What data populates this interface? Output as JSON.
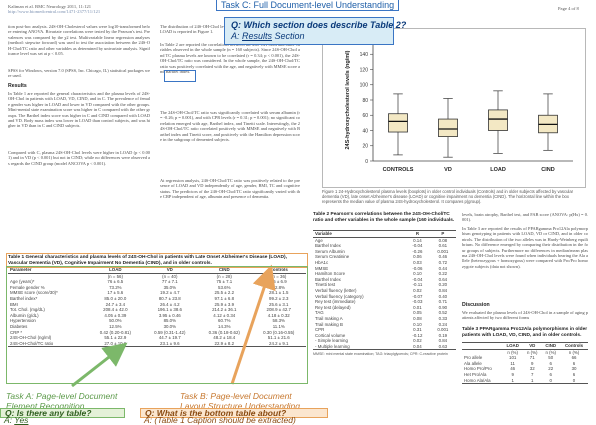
{
  "page": {
    "header_left": "Kaliman et al. BMC Neurology 2011, 11:121",
    "header_left_url": "http://www.biomedcentral.com/1471-2377/11/121",
    "header_right": "Page 4 of 8"
  },
  "col1": {
    "para1": "tion post-hoc analysis. 24S-OH-Cholesterol values were log10-transformed before entering ANOVA. Bivariate correlations were tested by the Pearson's test. Prevalences was compared by the χ2 test. Multivariable linear regression analyses (method: stepwise forward) was used to test the association between the 24S-OH-Chol/TC ratio and other variables as determined by univariate analysis. Significance level was set at p < 0.05.",
    "para2": "SPSS for Windows, version 7.0 (SPSS, Inc. Chicago, IL) statistical packages were used.",
    "results_heading": "Results",
    "para3": "In Table 1 are reported the general characteristics and the plasma levels of 24S-OH-Chol in patients with LOAD, VD, CIND, and in C. The prevalence of female gender was higher in LOAD and lower in VD compared with the other groups. Mini-mental state examination score was higher in C compared with the other groups. The Barthel index score was higher in C and CIND compared with LOAD and VD. Body mass index was lower in LOAD than control subjects, and was higher in VD than in C and CIND subjects.",
    "para4": "Compared with C, plasma 24S-OH-Chol levels were higher in LOAD (p < 0.001) and in VD (p < 0.001) but not in CIND; while no differences were observed as regards the CIND group (model ANCOVA p < 0.001)."
  },
  "col2": {
    "para1": "The distribution of 24S-OH-Chol levels (boxplots) in Controls, CIND, VD and LOAD is reported in Figure 1.",
    "para2": "In Table 2 are reported the correlations between the 24S-OH-Chol and other variables observed in the whole sample (n = 160 subjects). Since 24S-OH-Chol and TC plasma levels are known to be correlated (r = 0.34; p < 0.001), the 24S-OH-Chol/TC ratio was considered. In the whole sample, the 24S-OH-Chol/TC ratio was positively correlated with the age, and negatively with MMSE score and Barthel index.",
    "para3": "The 24S-OH-Chol/TC ratio was significantly correlated with serum albumin (r = -0.26; p = 0.001), and with CPR levels (r = 0.31; p = 0.001); no significant correlation emerged with age, Barthel index, and Tinetti scale. Interestingly, the 24S-OH-Chol/TC ratio correlated positively with MMSE and negatively with Barthel index and Tinetti score, and positively with the Hamilton depression score in the subgroup of demented subjects.",
    "para4": "At regression analysis, 24S-OH-Chol/TC ratio was positively related to the presence of LOAD and VD independently of age, gender, BMI, TC and cognitive status. The predictors of the 24S-OH-Chol/TC ratio significantly varied with the CRP independent of age, albumin and presence of dementia."
  },
  "figure": {
    "ylabel": "24S-hydroxycholesterol levels (ng/ml)",
    "categories": [
      "CONTROLS",
      "VD",
      "LOAD",
      "CIND"
    ],
    "caption": "Figure 1 24-Hydroxycholesterol plasma levels (boxplots) in older control individuals (Controls) and in older subjects affected by vascular dementia (VD), late onset Alzheimer's disease (LOAD) or cognitive impairment no dementia (CIND). The horizontal line within the box represents the median value of plasma 24S-hydroxycholesterol. It compares p(group)."
  },
  "chart_data": {
    "type": "box",
    "categories": [
      "CONTROLS",
      "VD",
      "LOAD",
      "CIND"
    ],
    "ylabel": "24S-hydroxycholesterol levels (ng/ml)",
    "ylim": [
      0,
      160
    ],
    "yticks": [
      0,
      20,
      40,
      60,
      80,
      100,
      120,
      140,
      160
    ],
    "boxes": [
      {
        "whisker_low": 8,
        "q1": 38,
        "median": 52,
        "q3": 62,
        "whisker_high": 88
      },
      {
        "whisker_low": 5,
        "q1": 32,
        "median": 42,
        "q3": 55,
        "whisker_high": 82
      },
      {
        "whisker_low": 10,
        "q1": 40,
        "median": 55,
        "q3": 67,
        "whisker_high": 92
      },
      {
        "whisker_low": 14,
        "q1": 37,
        "median": 48,
        "q3": 60,
        "whisker_high": 88
      }
    ]
  },
  "table1": {
    "caption": "Table 1 General characteristics and plasma levels of 24S-OH-Chol in patients with Late Onset Alzheimer's Disease (LOAD), Vascular Dementia (VD), Cognitive Impairment No Dementia (CIND), and in older controls.",
    "headers": [
      "Parameter",
      "LOAD",
      "VD",
      "CIND",
      "Controls"
    ],
    "subheaders": [
      "",
      "(n = 56)",
      "(n = 40)",
      "(n = 28)",
      "(n = 36)"
    ],
    "rows": [
      [
        "Age (years)*",
        "76 ± 6.5",
        "77 ± 7.1",
        "75 ± 7.1",
        "75 ± 6.9"
      ],
      [
        "Female gender %",
        "73.2%",
        "35.0%",
        "53.6%",
        "52.8%"
      ],
      [
        "MMSE score (score/30)*",
        "17 ± 5.6",
        "19.2 ± 4.7",
        "25.5 ± 2.2",
        "28.1 ± 1.5"
      ],
      [
        "Barthel index*",
        "85.0 ± 20.0",
        "80.7 ± 23.8",
        "97.1 ± 6.8",
        "99.2 ± 2.3"
      ],
      [
        "BMI",
        "24.7 ± 3.4",
        "26.4 ± 4.2",
        "25.9 ± 3.9",
        "25.6 ± 3.1"
      ],
      [
        "Tot. Chol. (mg/dL)",
        "208.4 ± 42.0",
        "196.1 ± 38.6",
        "214.2 ± 36.1",
        "208.9 ± 42.7"
      ],
      [
        "Albumin (g/dL)",
        "4.05 ± 0.39",
        "3.95 ± 0.46",
        "4.12 ± 0.34",
        "4.18 ± 0.32"
      ],
      [
        "Hypertension",
        "50.0%",
        "85.0%",
        "60.7%",
        "58.3%"
      ],
      [
        "Diabetes",
        "12.5%",
        "30.0%",
        "14.3%",
        "11.1%"
      ],
      [
        "CRP *",
        "0.42 (0.20-0.81)",
        "0.59 (0.31-1.42)",
        "0.36 (0.18-0.62)",
        "0.30 (0.16-0.55)"
      ],
      [
        "24S-OH-Chol (ng/ml)",
        "55.1 ± 22.9",
        "44.7 ± 19.7",
        "48.2 ± 18.4",
        "51.1 ± 21.6"
      ],
      [
        "24S-OH-Chol/TC ratio",
        "27.0 ± 10.6",
        "23.1 ± 9.6",
        "22.9 ± 8.2",
        "24.2 ± 9.1"
      ]
    ]
  },
  "table2": {
    "caption": "Table 2 Pearson's correlations between the 24S-OH-Chol/TC ratio and other variables in the whole sample (160 individuals.",
    "headers": [
      "Variable",
      "R",
      "P"
    ],
    "rows": [
      [
        "Age",
        "0.14",
        "0.08"
      ],
      [
        "Barthel Index",
        "-0.04",
        "0.61"
      ],
      [
        "Serum Albumin",
        "-0.26",
        "0.001"
      ],
      [
        "Serum Creatinine",
        "0.06",
        "0.46"
      ],
      [
        "HbA1c",
        "0.03",
        "0.72"
      ],
      [
        "MMSE",
        "-0.06",
        "0.44"
      ],
      [
        "Hamilton Score",
        "0.10",
        "0.22"
      ],
      [
        "Barthel Index",
        "-0.04",
        "0.64"
      ],
      [
        "Tinetti test",
        "-0.11",
        "0.20"
      ],
      [
        "Verbal fluency (letter)",
        "0.02",
        "0.84"
      ],
      [
        "Verbal fluency (category)",
        "-0.07",
        "0.40"
      ],
      [
        "Rey test (immediate)",
        "-0.03",
        "0.71"
      ],
      [
        "Rey test (delayed)",
        "0.01",
        "0.90"
      ],
      [
        "TAG",
        "0.05",
        "0.52"
      ],
      [
        "Trail making A",
        "0.08",
        "0.33"
      ],
      [
        "Trail making B",
        "0.10",
        "0.24"
      ],
      [
        "CPR",
        "0.31",
        "0.001"
      ],
      [
        "Cortical volume",
        "-0.12",
        "0.19"
      ],
      [
        "- Simple learning",
        "0.02",
        "0.84"
      ],
      [
        "- Multiple learning",
        "0.04",
        "0.63"
      ]
    ],
    "footnote": "MMSE: mini mental state examination; TAG: triacylglycerols; CPR: C-reactive protein"
  },
  "col3_text": {
    "para1": "levels, brain atrophy, Barthel test, and FAB score (ANOVA: p(Hx) = 0.001).",
    "para2": "In Table 3 are reported the results of PPARgamma Pro12Ala polymorphism genotyping in patients with LOAD, VD or CIND, and in older controls. The distribution of the two alleles was in Hardy-Weinberg equilibrium. No difference emerged by comparing their distribution in the four groups of subjects. Furthermore no differences in median/mean plasma 24S-OH-Chol levels were found when individuals bearing the Ala allele (heterozygous + homozygous) were compared with Pro/Pro homozygote subjects (data not shown).",
    "discussion_heading": "Discussion",
    "para3": "We evaluated the plasma levels of 24S-OH-Chol in a sample of aging patients affected by two different forms"
  },
  "table3": {
    "caption": "Table 3 PPARgamma Pro12Ala polymorphisms in older patients with LOAD, VD, CIND, and in older controls.",
    "headers": [
      "",
      "LOAD",
      "VD",
      "CIND",
      "Controls"
    ],
    "rows": [
      [
        "",
        "n (%)",
        "n (%)",
        "n (%)",
        "n (%)"
      ],
      [
        "Pro allele",
        "101",
        "71",
        "50",
        "66"
      ],
      [
        "Ala allele",
        "11",
        "9",
        "6",
        "6"
      ],
      [
        "",
        "",
        "",
        "",
        ""
      ],
      [
        "Homo Pro/Pro",
        "46",
        "32",
        "22",
        "30"
      ],
      [
        "Het Pro/Ala",
        "9",
        "7",
        "6",
        "6"
      ],
      [
        "Homo Ala/Ala",
        "1",
        "1",
        "0",
        "0"
      ]
    ]
  },
  "annotations": {
    "task_c": "Task C: Full Document-level Understanding",
    "q_c": "Q: Which section does describe Table 2?",
    "a_c_prefix": "A: ",
    "a_c_value": "Results",
    "a_c_suffix": " Section",
    "task_a": "Task A: Page-level Document Element Recognition",
    "task_a_line1": "Task A: Page-level Document",
    "task_a_line2": "Element Recognition",
    "q_a": "Q: Is there any table?",
    "a_a_prefix": "A: ",
    "a_a_value": "Yes",
    "task_b_line1": "Task B: Page-level Document",
    "task_b_line2": "Layout Structure Understanding",
    "q_b": "Q: What is the bottom table about?",
    "a_b": "A: (Table 1 Caption should be extracted)"
  },
  "colors": {
    "blue": "#3a75c4",
    "green": "#7cb86a",
    "orange": "#e8a35c",
    "box_fill": "#f3e8c4"
  }
}
